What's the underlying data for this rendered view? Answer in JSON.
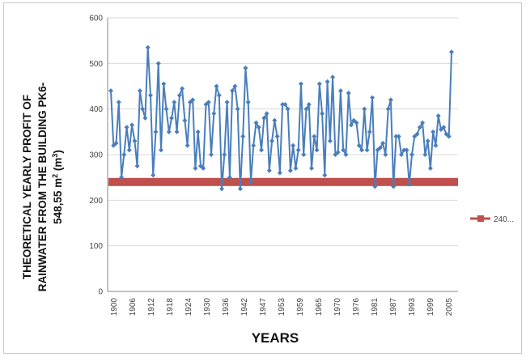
{
  "chart_data": {
    "type": "line",
    "title": "",
    "ylabel_line1": "THEORETICAL YEARLY PROFIT OF",
    "ylabel_line2": "RAINWATER FROM THE BUILDING PK6-",
    "ylabel_line3_main": "548,55 m",
    "ylabel_line3_sup1": "2",
    "ylabel_line3_mid": " (m",
    "ylabel_line3_sup2": "3",
    "ylabel_line3_end": ")",
    "xlabel": "YEARS",
    "ylim": [
      0,
      600
    ],
    "y_ticks": [
      0,
      100,
      200,
      300,
      400,
      500,
      600
    ],
    "x_tick_labels": [
      "1900",
      "1906",
      "1912",
      "1918",
      "1924",
      "1930",
      "1936",
      "1942",
      "1947",
      "1953",
      "1959",
      "1965",
      "1970",
      "1976",
      "1981",
      "1987",
      "1993",
      "1999",
      "2005"
    ],
    "grid": true,
    "legend_position": "right",
    "colors": {
      "series": "#4a7ebb",
      "threshold": "#c0504d",
      "grid": "#d9d9d9"
    },
    "series": [
      {
        "x_start": 1900,
        "x_end": 2010,
        "values": [
          440,
          320,
          325,
          415,
          250,
          300,
          360,
          310,
          365,
          330,
          275,
          440,
          400,
          380,
          535,
          430,
          255,
          350,
          500,
          310,
          455,
          400,
          350,
          380,
          415,
          350,
          430,
          445,
          375,
          320,
          415,
          420,
          270,
          350,
          275,
          270,
          410,
          415,
          300,
          390,
          450,
          430,
          225,
          300,
          415,
          250,
          440,
          450,
          400,
          225,
          340,
          490,
          415,
          240,
          320,
          370,
          360,
          310,
          380,
          390,
          265,
          330,
          375,
          340,
          260,
          410,
          410,
          400,
          265,
          320,
          270,
          310,
          455,
          300,
          400,
          410,
          270,
          340,
          310,
          455,
          390,
          255,
          460,
          330,
          470,
          300,
          305,
          440,
          310,
          300,
          435,
          365,
          375,
          370,
          320,
          310,
          400,
          310,
          350,
          425,
          230,
          310,
          315,
          325,
          300,
          400,
          420,
          230,
          340,
          340,
          300,
          310,
          310,
          235,
          300,
          340,
          345,
          360,
          370,
          300,
          330,
          270,
          350,
          320,
          385,
          355,
          360,
          345,
          340,
          525
        ]
      }
    ],
    "threshold": {
      "value": 240,
      "legend_label": "240..."
    }
  }
}
